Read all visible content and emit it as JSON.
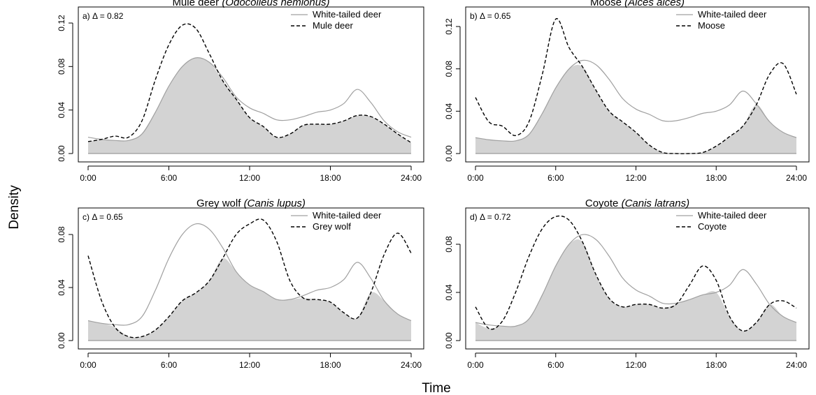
{
  "figure": {
    "xlabel": "Time",
    "ylabel": "Density",
    "colors": {
      "overlap_fill": "#d3d3d3",
      "reference_line": "#a0a0a0",
      "comparison_line": "#000000",
      "axes": "#000000"
    }
  },
  "chart_data": [
    {
      "type": "line",
      "title": {
        "plain": "Mule deer ",
        "italic": "(Odocoileus hemionus)"
      },
      "annotation": "a) Δ = 0.82",
      "x_ticks": [
        "0:00",
        "6:00",
        "12:00",
        "18:00",
        "24:00"
      ],
      "y_ticks": [
        "0.00",
        "0.04",
        "0.08",
        "0.12"
      ],
      "ylim": [
        0,
        0.125
      ],
      "x": [
        0,
        1,
        2,
        3,
        4,
        5,
        6,
        7,
        8,
        9,
        10,
        11,
        12,
        13,
        14,
        15,
        16,
        17,
        18,
        19,
        20,
        21,
        22,
        23,
        24
      ],
      "legend_position": "top-right",
      "series": [
        {
          "name": "White-tailed deer",
          "style": "solid",
          "values": [
            0.015,
            0.013,
            0.012,
            0.012,
            0.018,
            0.038,
            0.062,
            0.08,
            0.088,
            0.084,
            0.07,
            0.052,
            0.042,
            0.037,
            0.031,
            0.031,
            0.034,
            0.038,
            0.04,
            0.046,
            0.059,
            0.047,
            0.03,
            0.02,
            0.015
          ]
        },
        {
          "name": "Mule deer",
          "style": "dashed",
          "values": [
            0.011,
            0.013,
            0.016,
            0.015,
            0.03,
            0.068,
            0.1,
            0.118,
            0.115,
            0.092,
            0.067,
            0.05,
            0.033,
            0.025,
            0.015,
            0.018,
            0.026,
            0.027,
            0.027,
            0.03,
            0.035,
            0.034,
            0.027,
            0.018,
            0.01
          ]
        }
      ]
    },
    {
      "type": "line",
      "title": {
        "plain": "Moose ",
        "italic": "(Alces alces)"
      },
      "annotation": "b) Δ = 0.65",
      "x_ticks": [
        "0:00",
        "6:00",
        "12:00",
        "18:00",
        "24:00"
      ],
      "y_ticks": [
        "0.00",
        "0.04",
        "0.08",
        "0.12"
      ],
      "ylim": [
        0,
        0.13
      ],
      "x": [
        0,
        1,
        2,
        3,
        4,
        5,
        6,
        7,
        8,
        9,
        10,
        11,
        12,
        13,
        14,
        15,
        16,
        17,
        18,
        19,
        20,
        21,
        22,
        23,
        24
      ],
      "legend_position": "top-right",
      "series": [
        {
          "name": "White-tailed deer",
          "style": "solid",
          "values": [
            0.015,
            0.013,
            0.012,
            0.012,
            0.018,
            0.038,
            0.062,
            0.08,
            0.088,
            0.084,
            0.07,
            0.052,
            0.042,
            0.037,
            0.031,
            0.031,
            0.034,
            0.038,
            0.04,
            0.046,
            0.059,
            0.047,
            0.03,
            0.02,
            0.015
          ]
        },
        {
          "name": "Moose",
          "style": "dashed",
          "values": [
            0.053,
            0.03,
            0.026,
            0.017,
            0.03,
            0.075,
            0.127,
            0.1,
            0.082,
            0.06,
            0.04,
            0.03,
            0.02,
            0.008,
            0.001,
            0.0,
            0.0,
            0.001,
            0.007,
            0.016,
            0.026,
            0.046,
            0.075,
            0.085,
            0.056
          ]
        }
      ]
    },
    {
      "type": "line",
      "title": {
        "plain": "Grey wolf ",
        "italic": "(Canis lupus)"
      },
      "annotation": "c) Δ = 0.65",
      "x_ticks": [
        "0:00",
        "6:00",
        "12:00",
        "18:00",
        "24:00"
      ],
      "y_ticks": [
        "0.00",
        "0.04",
        "0.08"
      ],
      "ylim": [
        0,
        0.095
      ],
      "x": [
        0,
        1,
        2,
        3,
        4,
        5,
        6,
        7,
        8,
        9,
        10,
        11,
        12,
        13,
        14,
        15,
        16,
        17,
        18,
        19,
        20,
        21,
        22,
        23,
        24
      ],
      "legend_position": "top-right",
      "series": [
        {
          "name": "White-tailed deer",
          "style": "solid",
          "values": [
            0.015,
            0.013,
            0.012,
            0.012,
            0.018,
            0.038,
            0.062,
            0.08,
            0.088,
            0.084,
            0.07,
            0.052,
            0.042,
            0.037,
            0.031,
            0.031,
            0.034,
            0.038,
            0.04,
            0.046,
            0.059,
            0.047,
            0.03,
            0.02,
            0.015
          ]
        },
        {
          "name": "Grey wolf",
          "style": "dashed",
          "values": [
            0.064,
            0.03,
            0.01,
            0.003,
            0.003,
            0.008,
            0.018,
            0.03,
            0.036,
            0.045,
            0.062,
            0.08,
            0.088,
            0.091,
            0.075,
            0.045,
            0.032,
            0.031,
            0.029,
            0.021,
            0.017,
            0.036,
            0.065,
            0.081,
            0.066
          ]
        }
      ]
    },
    {
      "type": "line",
      "title": {
        "plain": "Coyote ",
        "italic": "(Canis latrans)"
      },
      "annotation": "d) Δ = 0.72",
      "x_ticks": [
        "0:00",
        "6:00",
        "12:00",
        "18:00",
        "24:00"
      ],
      "y_ticks": [
        "0.00",
        "0.04",
        "0.08"
      ],
      "ylim": [
        0,
        0.105
      ],
      "x": [
        0,
        1,
        2,
        3,
        4,
        5,
        6,
        7,
        8,
        9,
        10,
        11,
        12,
        13,
        14,
        15,
        16,
        17,
        18,
        19,
        20,
        21,
        22,
        23,
        24
      ],
      "legend_position": "top-right",
      "series": [
        {
          "name": "White-tailed deer",
          "style": "solid",
          "values": [
            0.015,
            0.013,
            0.012,
            0.012,
            0.018,
            0.038,
            0.062,
            0.08,
            0.088,
            0.084,
            0.07,
            0.052,
            0.042,
            0.037,
            0.031,
            0.031,
            0.034,
            0.038,
            0.04,
            0.046,
            0.059,
            0.047,
            0.03,
            0.02,
            0.015
          ]
        },
        {
          "name": "Coyote",
          "style": "dashed",
          "values": [
            0.028,
            0.01,
            0.016,
            0.04,
            0.07,
            0.093,
            0.103,
            0.1,
            0.082,
            0.055,
            0.035,
            0.028,
            0.03,
            0.03,
            0.027,
            0.03,
            0.046,
            0.062,
            0.05,
            0.02,
            0.008,
            0.015,
            0.03,
            0.033,
            0.027
          ]
        }
      ]
    }
  ]
}
